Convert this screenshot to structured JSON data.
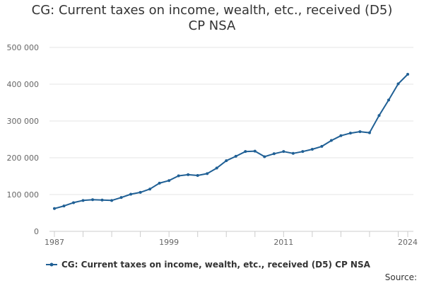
{
  "chart_data": {
    "type": "line",
    "title_line1": "CG: Current taxes on income, wealth, etc., received (D5)",
    "title_line2": "CP NSA",
    "xlabel": "",
    "ylabel": "",
    "xlim": [
      1987,
      2024
    ],
    "ylim": [
      0,
      500000
    ],
    "y_ticks": [
      0,
      100000,
      200000,
      300000,
      400000,
      500000
    ],
    "y_tick_labels": [
      "0",
      "100 000",
      "200 000",
      "300 000",
      "400 000",
      "500 000"
    ],
    "x_tick_labels": [
      "1987",
      "1999",
      "2011",
      "2024"
    ],
    "x_tick_values": [
      1987,
      1999,
      2011,
      2024
    ],
    "grid": true,
    "legend_position": "bottom",
    "series": [
      {
        "name": "CG: Current taxes on income, wealth, etc., received (D5) CP NSA",
        "color": "#206095",
        "x": [
          1987,
          1988,
          1989,
          1990,
          1991,
          1992,
          1993,
          1994,
          1995,
          1996,
          1997,
          1998,
          1999,
          2000,
          2001,
          2002,
          2003,
          2004,
          2005,
          2006,
          2007,
          2008,
          2009,
          2010,
          2011,
          2012,
          2013,
          2014,
          2015,
          2016,
          2017,
          2018,
          2019,
          2020,
          2021,
          2022,
          2023,
          2024
        ],
        "values": [
          62000,
          69000,
          78000,
          84000,
          86000,
          85000,
          84000,
          92000,
          101000,
          106000,
          115000,
          131000,
          138000,
          151000,
          154000,
          152000,
          157000,
          172000,
          192000,
          204000,
          217000,
          218000,
          203000,
          211000,
          217000,
          212000,
          217000,
          223000,
          231000,
          247000,
          260000,
          267000,
          271000,
          268000,
          315000,
          357000,
          401000,
          427000
        ]
      }
    ]
  },
  "credits": "Source:"
}
